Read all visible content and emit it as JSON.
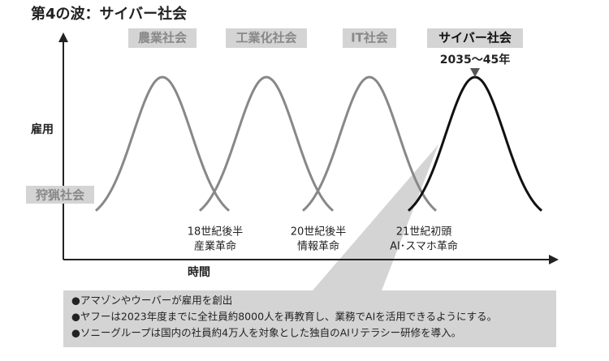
{
  "title": "第4の波：サイバー社会",
  "y_axis_label": "雇用",
  "x_axis_label": "時間",
  "base_label": "狩猟社会",
  "eras": [
    "農業社会",
    "工業化社会",
    "IT社会",
    "サイバー社会"
  ],
  "peak_label": "2035〜45年",
  "revolutions": [
    {
      "line1": "18世紀後半",
      "line2": "産業革命"
    },
    {
      "line1": "20世紀後半",
      "line2": "情報革命"
    },
    {
      "line1": "21世紀初頭",
      "line2": "AI･スマホ革命"
    }
  ],
  "notes": [
    "●アマゾンやウーバーが雇用を創出",
    "●ヤフーは2023年度までに全社員約8000人を再教育し、業務でAIを活用できるようにする。",
    "●ソニーグループは国内の社員約4万人を対象とした独自のAIリテラシー研修を導入。"
  ]
}
